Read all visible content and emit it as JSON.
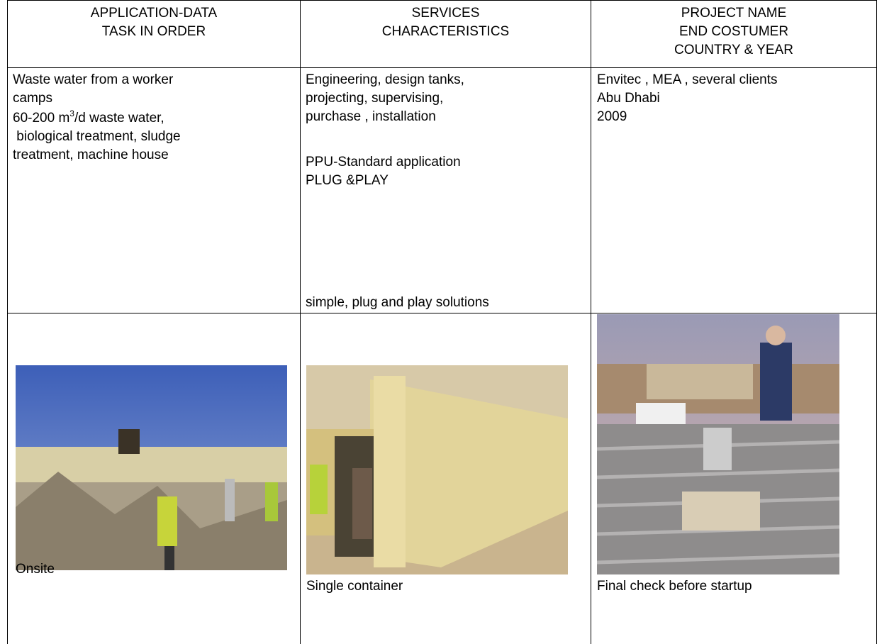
{
  "table": {
    "header": [
      {
        "lines": [
          "APPLICATION-DATA",
          "TASK IN ORDER"
        ]
      },
      {
        "lines": [
          "SERVICES",
          "CHARACTERISTICS"
        ]
      },
      {
        "lines": [
          "PROJECT NAME",
          "END COSTUMER",
          "COUNTRY & YEAR"
        ]
      }
    ],
    "row": [
      {
        "line1": "Waste water from a worker",
        "line2": "camps",
        "line3": {
          "before": "60-200 m",
          "sup": "3",
          "after": "/d waste water,"
        },
        "line4": " biological treatment, sludge",
        "line5": "treatment, machine house"
      },
      {
        "block1": [
          "Engineering, design tanks,",
          "projecting, supervising,",
          "purchase , installation"
        ],
        "block2": [
          "PPU-Standard application",
          "PLUG &PLAY"
        ],
        "block3": "simple, plug and play solutions"
      },
      {
        "lines": [
          "Envitec , MEA , several clients",
          "Abu Dhabi",
          "2009"
        ]
      }
    ],
    "captions": [
      "Onsite",
      "Single container",
      "Final check before startup"
    ]
  }
}
